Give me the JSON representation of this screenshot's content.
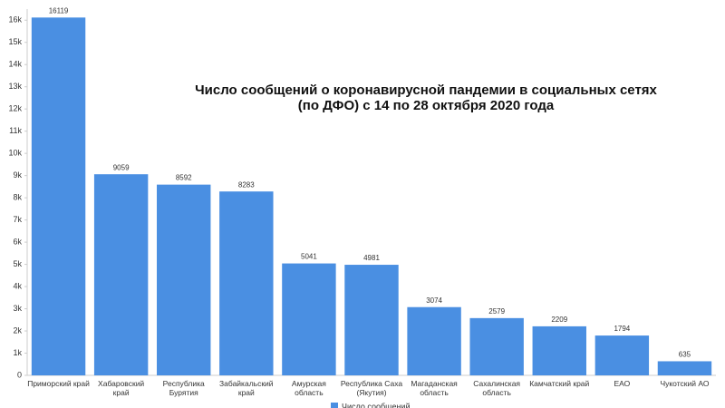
{
  "chart_data": {
    "type": "bar",
    "title": [
      "Число сообщений о коронавирусной пандемии в социальных сетях",
      "(по ДФО) с 14 по 28 октября 2020 года"
    ],
    "categories": [
      "Приморский край",
      "Хабаровский край",
      "Республика Бурятия",
      "Забайкальский край",
      "Амурская область",
      "Республика Саха (Якутия)",
      "Магаданская область",
      "Сахалинская область",
      "Камчатский край",
      "ЕАО",
      "Чукотский АО"
    ],
    "series": [
      {
        "name": "Число сообщений",
        "color": "#4a8fe2",
        "values": [
          16119,
          9059,
          8592,
          8283,
          5041,
          4981,
          3074,
          2579,
          2209,
          1794,
          635
        ]
      }
    ],
    "ylim": [
      0,
      16500
    ],
    "yticks": [
      0,
      {
        "value": 1000,
        "label": "1k"
      },
      {
        "value": 2000,
        "label": "2k"
      },
      {
        "value": 3000,
        "label": "3k"
      },
      {
        "value": 4000,
        "label": "4k"
      },
      {
        "value": 5000,
        "label": "5k"
      },
      {
        "value": 6000,
        "label": "6k"
      },
      {
        "value": 7000,
        "label": "7k"
      },
      {
        "value": 8000,
        "label": "8k"
      },
      {
        "value": 9000,
        "label": "9k"
      },
      {
        "value": 10000,
        "label": "10k"
      },
      {
        "value": 11000,
        "label": "11k"
      },
      {
        "value": 12000,
        "label": "12k"
      },
      {
        "value": 13000,
        "label": "13k"
      },
      {
        "value": 14000,
        "label": "14k"
      },
      {
        "value": 15000,
        "label": "15k"
      },
      {
        "value": 16000,
        "label": "16k"
      }
    ],
    "grid": false
  }
}
